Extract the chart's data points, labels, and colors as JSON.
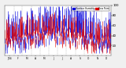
{
  "legend_labels": [
    "Outdoor Humidity",
    "Dew Point"
  ],
  "legend_colors": [
    "#0000dd",
    "#dd0000"
  ],
  "bg_color": "#f0f0f0",
  "plot_bg": "#ffffff",
  "grid_color": "#999999",
  "ymid": 50,
  "ylim": [
    0,
    100
  ],
  "n_days": 365,
  "seed": 42,
  "month_starts": [
    0,
    31,
    59,
    90,
    120,
    151,
    181,
    212,
    243,
    273,
    304,
    334
  ],
  "month_mids": [
    15,
    45,
    74,
    105,
    135,
    166,
    196,
    227,
    258,
    288,
    319,
    349
  ],
  "month_labels": [
    "J'04",
    "F",
    "M",
    "A",
    "M",
    "J",
    "J",
    "A",
    "S",
    "O",
    "N",
    "D"
  ]
}
